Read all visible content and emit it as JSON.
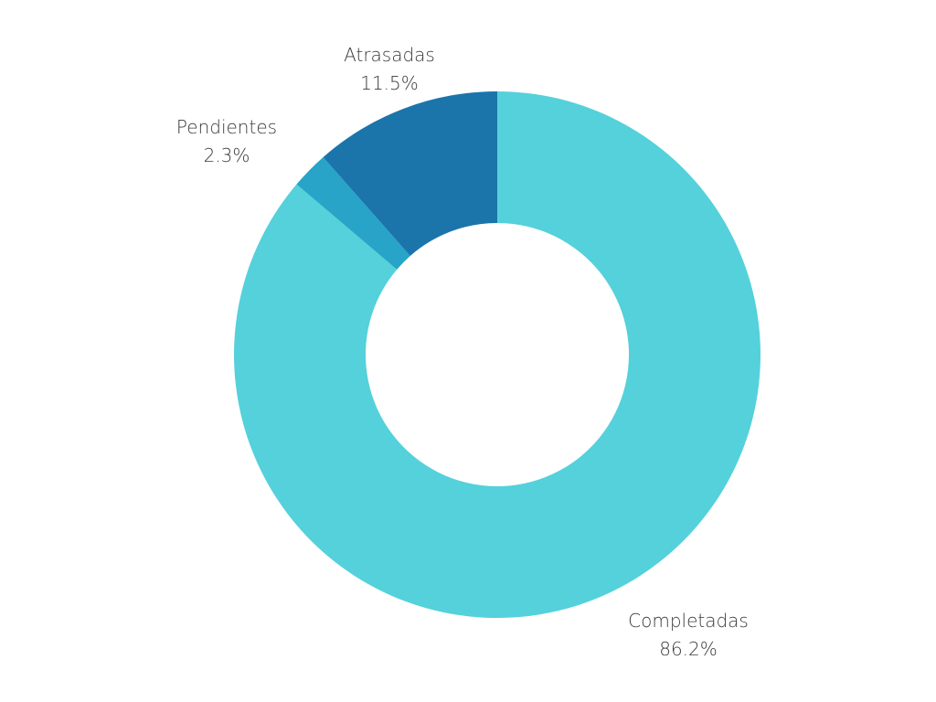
{
  "chart_data": {
    "type": "donut",
    "title": "",
    "start_angle_deg": 0,
    "direction": "clockwise",
    "slices": [
      {
        "label": "Completadas",
        "value": 86.2,
        "value_label": "86.2%",
        "color": "#54D1DB"
      },
      {
        "label": "Pendientes",
        "value": 2.3,
        "value_label": "2.3%",
        "color": "#27A4C8"
      },
      {
        "label": "Atrasadas",
        "value": 11.5,
        "value_label": "11.5%",
        "color": "#1B75AB"
      }
    ]
  }
}
